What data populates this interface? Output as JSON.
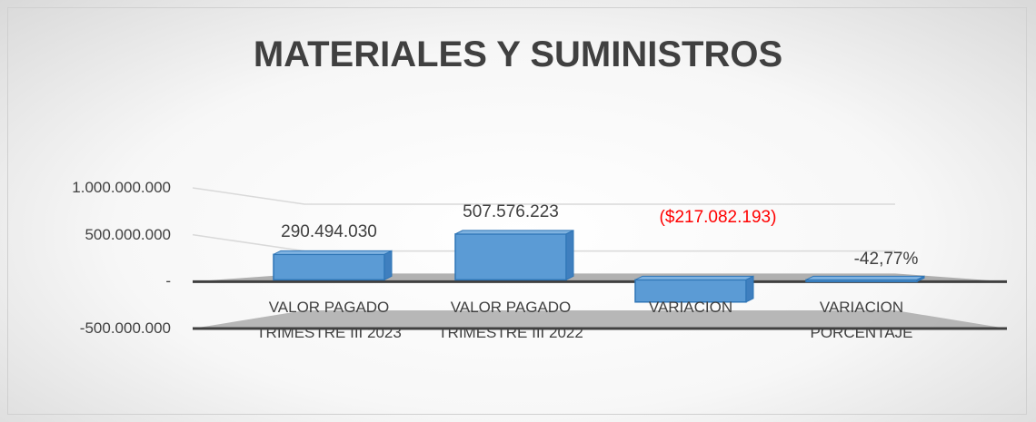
{
  "chart_data": {
    "type": "bar3d",
    "title": "MATERIALES Y SUMINISTROS",
    "categories": [
      "VALOR PAGADO\nTRIMESTRE III 2023",
      "VALOR PAGADO\nTRIMESTRE III 2022",
      "VARIACION",
      "VARIACION\nPORCENTAJE"
    ],
    "values": [
      290494030,
      507576223,
      -217082193,
      -42.77
    ],
    "value_labels": [
      "290.494.030",
      "507.576.223",
      "($217.082.193)",
      "-42,77%"
    ],
    "value_label_colors": [
      "#404040",
      "#404040",
      "#ff0000",
      "#404040"
    ],
    "color": "#5b9bd5",
    "ylim": [
      -500000000,
      1000000000
    ],
    "yticks": [
      {
        "value": -500000000,
        "label": "-500.000.000"
      },
      {
        "value": 0,
        "label": "-"
      },
      {
        "value": 500000000,
        "label": "500.000.000"
      },
      {
        "value": 1000000000,
        "label": "1.000.000.000"
      }
    ],
    "grid": true
  }
}
